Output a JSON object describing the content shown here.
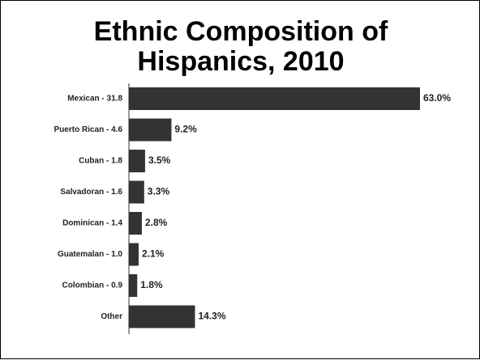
{
  "chart_data": {
    "type": "bar",
    "orientation": "horizontal",
    "title_lines": [
      "Ethnic Composition of",
      "Hispanics, 2010"
    ],
    "categories": [
      "Mexican - 31.8",
      "Puerto Rican - 4.6",
      "Cuban - 1.8",
      "Salvadoran - 1.6",
      "Dominican - 1.4",
      "Guatemalan - 1.0",
      "Colombian - 0.9",
      "Other"
    ],
    "values": [
      63.0,
      9.2,
      3.5,
      3.3,
      2.8,
      2.1,
      1.8,
      14.3
    ],
    "value_labels": [
      "63.0%",
      "9.2%",
      "3.5%",
      "3.3%",
      "2.8%",
      "2.1%",
      "1.8%",
      "14.3%"
    ],
    "unit": "%",
    "xlim": [
      0,
      63
    ],
    "bar_color": "#333333",
    "grid": false,
    "legend": "none"
  }
}
